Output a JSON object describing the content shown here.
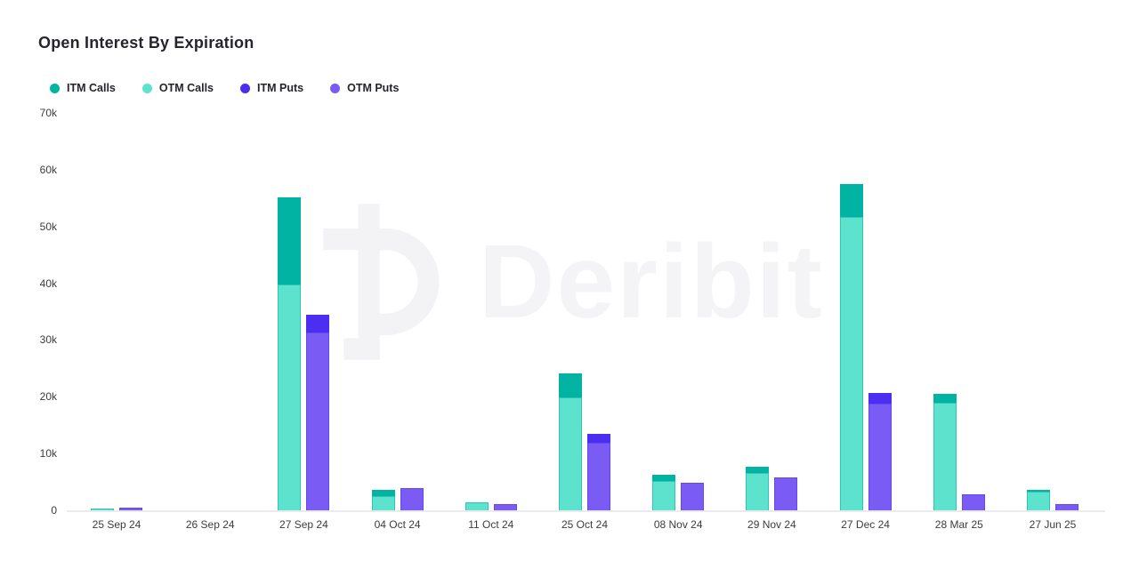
{
  "header": {
    "title": "Open Interest By Expiration"
  },
  "legend": [
    {
      "label": "ITM Calls",
      "color": "#00b3a3"
    },
    {
      "label": "OTM Calls",
      "color": "#5de3cd"
    },
    {
      "label": "ITM Puts",
      "color": "#4b2ef2"
    },
    {
      "label": "OTM Puts",
      "color": "#7a5cf5"
    }
  ],
  "watermark": {
    "symbol": "deribit-logo",
    "text": "Deribit"
  },
  "colors": {
    "itm_calls": "#00b3a3",
    "otm_calls": "#5de3cd",
    "itm_puts": "#4b2ef2",
    "otm_puts": "#7a5cf5",
    "otm_calls_border": "rgba(0,179,163,0.55)",
    "otm_puts_border": "rgba(75,46,242,0.45)",
    "axis_text": "#3c3c3c",
    "title_text": "#26252b",
    "baseline": "#ebebee",
    "watermark": "#f4f4f6"
  },
  "chart_data": {
    "type": "bar",
    "stacked": true,
    "title": "Open Interest By Expiration",
    "xlabel": "",
    "ylabel": "",
    "ylim": [
      0,
      70000
    ],
    "ytick_labels": [
      "0",
      "10k",
      "20k",
      "30k",
      "40k",
      "50k",
      "60k",
      "70k"
    ],
    "grid": false,
    "legend_position": "top-left",
    "categories": [
      "25 Sep 24",
      "26 Sep 24",
      "27 Sep 24",
      "04 Oct 24",
      "11 Oct 24",
      "25 Oct 24",
      "08 Nov 24",
      "29 Nov 24",
      "27 Dec 24",
      "28 Mar 25",
      "27 Jun 25"
    ],
    "series": [
      {
        "name": "ITM Calls",
        "stack": "calls",
        "color": "#00b3a3",
        "values": [
          0,
          0,
          15300,
          1100,
          0,
          4300,
          1100,
          1100,
          5800,
          1500,
          300
        ]
      },
      {
        "name": "OTM Calls",
        "stack": "calls",
        "color": "#5de3cd",
        "values": [
          400,
          0,
          40000,
          2700,
          1500,
          20000,
          5300,
          6700,
          51800,
          19100,
          3500
        ]
      },
      {
        "name": "ITM Puts",
        "stack": "puts",
        "color": "#4b2ef2",
        "values": [
          0,
          0,
          3100,
          0,
          0,
          1500,
          0,
          0,
          1800,
          0,
          0
        ]
      },
      {
        "name": "OTM Puts",
        "stack": "puts",
        "color": "#7a5cf5",
        "values": [
          700,
          0,
          31500,
          4100,
          1200,
          12100,
          5000,
          6000,
          19000,
          2900,
          1300
        ]
      }
    ]
  }
}
